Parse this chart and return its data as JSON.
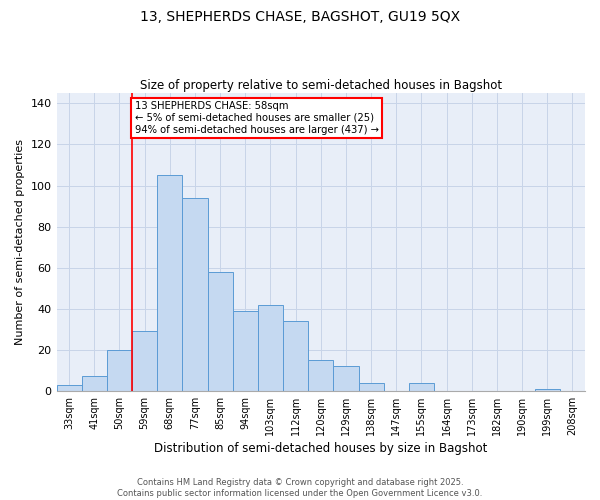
{
  "title_line1": "13, SHEPHERDS CHASE, BAGSHOT, GU19 5QX",
  "title_line2": "Size of property relative to semi-detached houses in Bagshot",
  "xlabel": "Distribution of semi-detached houses by size in Bagshot",
  "ylabel": "Number of semi-detached properties",
  "categories": [
    "33sqm",
    "41sqm",
    "50sqm",
    "59sqm",
    "68sqm",
    "77sqm",
    "85sqm",
    "94sqm",
    "103sqm",
    "112sqm",
    "120sqm",
    "129sqm",
    "138sqm",
    "147sqm",
    "155sqm",
    "164sqm",
    "173sqm",
    "182sqm",
    "190sqm",
    "199sqm",
    "208sqm"
  ],
  "values": [
    3,
    7,
    20,
    29,
    105,
    94,
    58,
    39,
    42,
    34,
    15,
    12,
    4,
    0,
    4,
    0,
    0,
    0,
    0,
    1,
    0
  ],
  "bar_color": "#c5d9f1",
  "bar_edge_color": "#5b9bd5",
  "grid_color": "#c8d4e8",
  "bg_color": "#e8eef8",
  "ylim": [
    0,
    145
  ],
  "yticks": [
    0,
    20,
    40,
    60,
    80,
    100,
    120,
    140
  ],
  "annotation_line1": "13 SHEPHERDS CHASE: 58sqm",
  "annotation_line2": "← 5% of semi-detached houses are smaller (25)",
  "annotation_line3": "94% of semi-detached houses are larger (437) →",
  "footer_line1": "Contains HM Land Registry data © Crown copyright and database right 2025.",
  "footer_line2": "Contains public sector information licensed under the Open Government Licence v3.0."
}
